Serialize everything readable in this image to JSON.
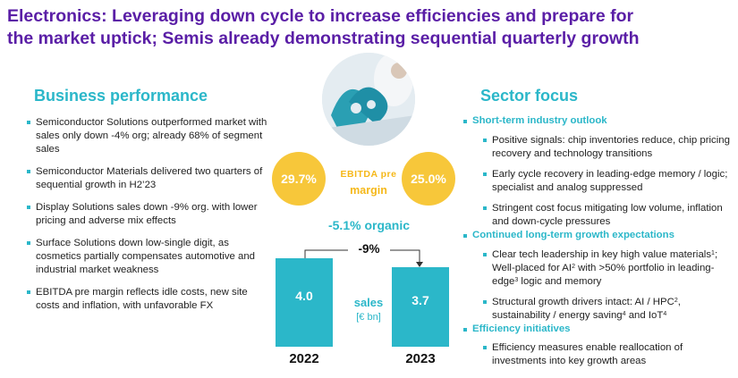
{
  "title": {
    "line1": "Electronics: Leveraging down cycle to increase efficiencies and prepare for",
    "line2": "the market uptick; Semis already demonstrating sequential quarterly growth"
  },
  "business_performance": {
    "heading": "Business performance",
    "items": [
      "Semiconductor Solutions outperformed market with sales only down -4% org; already 68% of segment sales",
      "Semiconductor Materials delivered two quarters of sequential growth in H2’23",
      "Display Solutions sales down -9% org. with lower pricing and adverse mix effects",
      "Surface Solutions down low-single digit, as cosmetics partially compensates automotive and industrial market weakness",
      "EBITDA pre margin reflects idle costs, new site costs and inflation, with unfavorable FX"
    ]
  },
  "center": {
    "margin_2022": "29.7%",
    "margin_2023": "25.0%",
    "ebitda_label_1": "EBITDA pre",
    "ebitda_label_2": "margin",
    "organic": "-5.1% organic",
    "change": "-9%",
    "bar_2022_value": "4.0",
    "bar_2023_value": "3.7",
    "sales_label": "sales",
    "unit_label": "[€ bn]",
    "year_2022": "2022",
    "year_2023": "2023",
    "colors": {
      "accent": "#2bb7c9",
      "yellow": "#f7c73a",
      "purple": "#5a1ea6"
    }
  },
  "sector_focus": {
    "heading": "Sector focus",
    "short_term": {
      "heading": "Short-term industry outlook",
      "items": [
        "Positive signals: chip inventories reduce, chip pricing recovery and technology transitions",
        "Early cycle recovery in leading-edge memory / logic; specialist and analog suppressed",
        "Stringent cost focus mitigating low volume, inflation and down-cycle pressures"
      ]
    },
    "long_term": {
      "heading": "Continued long-term growth expectations",
      "item1": {
        "a": "Clear tech leadership in key high value materials",
        "sup1": "1",
        "b": "; Well-placed for AI",
        "sup2": "2",
        "c": " with >50% portfolio in leading-edge",
        "sup3": "3",
        "d": " logic and memory"
      },
      "item2": {
        "a": "Structural growth drivers intact: AI / HPC",
        "sup1": "2",
        "b": ", sustainability / energy saving",
        "sup2": "4",
        "c": " and IoT",
        "sup3": "4"
      }
    },
    "efficiency": {
      "heading": "Efficiency initiatives",
      "items": [
        "Efficiency measures enable reallocation of investments into key growth areas"
      ]
    }
  }
}
